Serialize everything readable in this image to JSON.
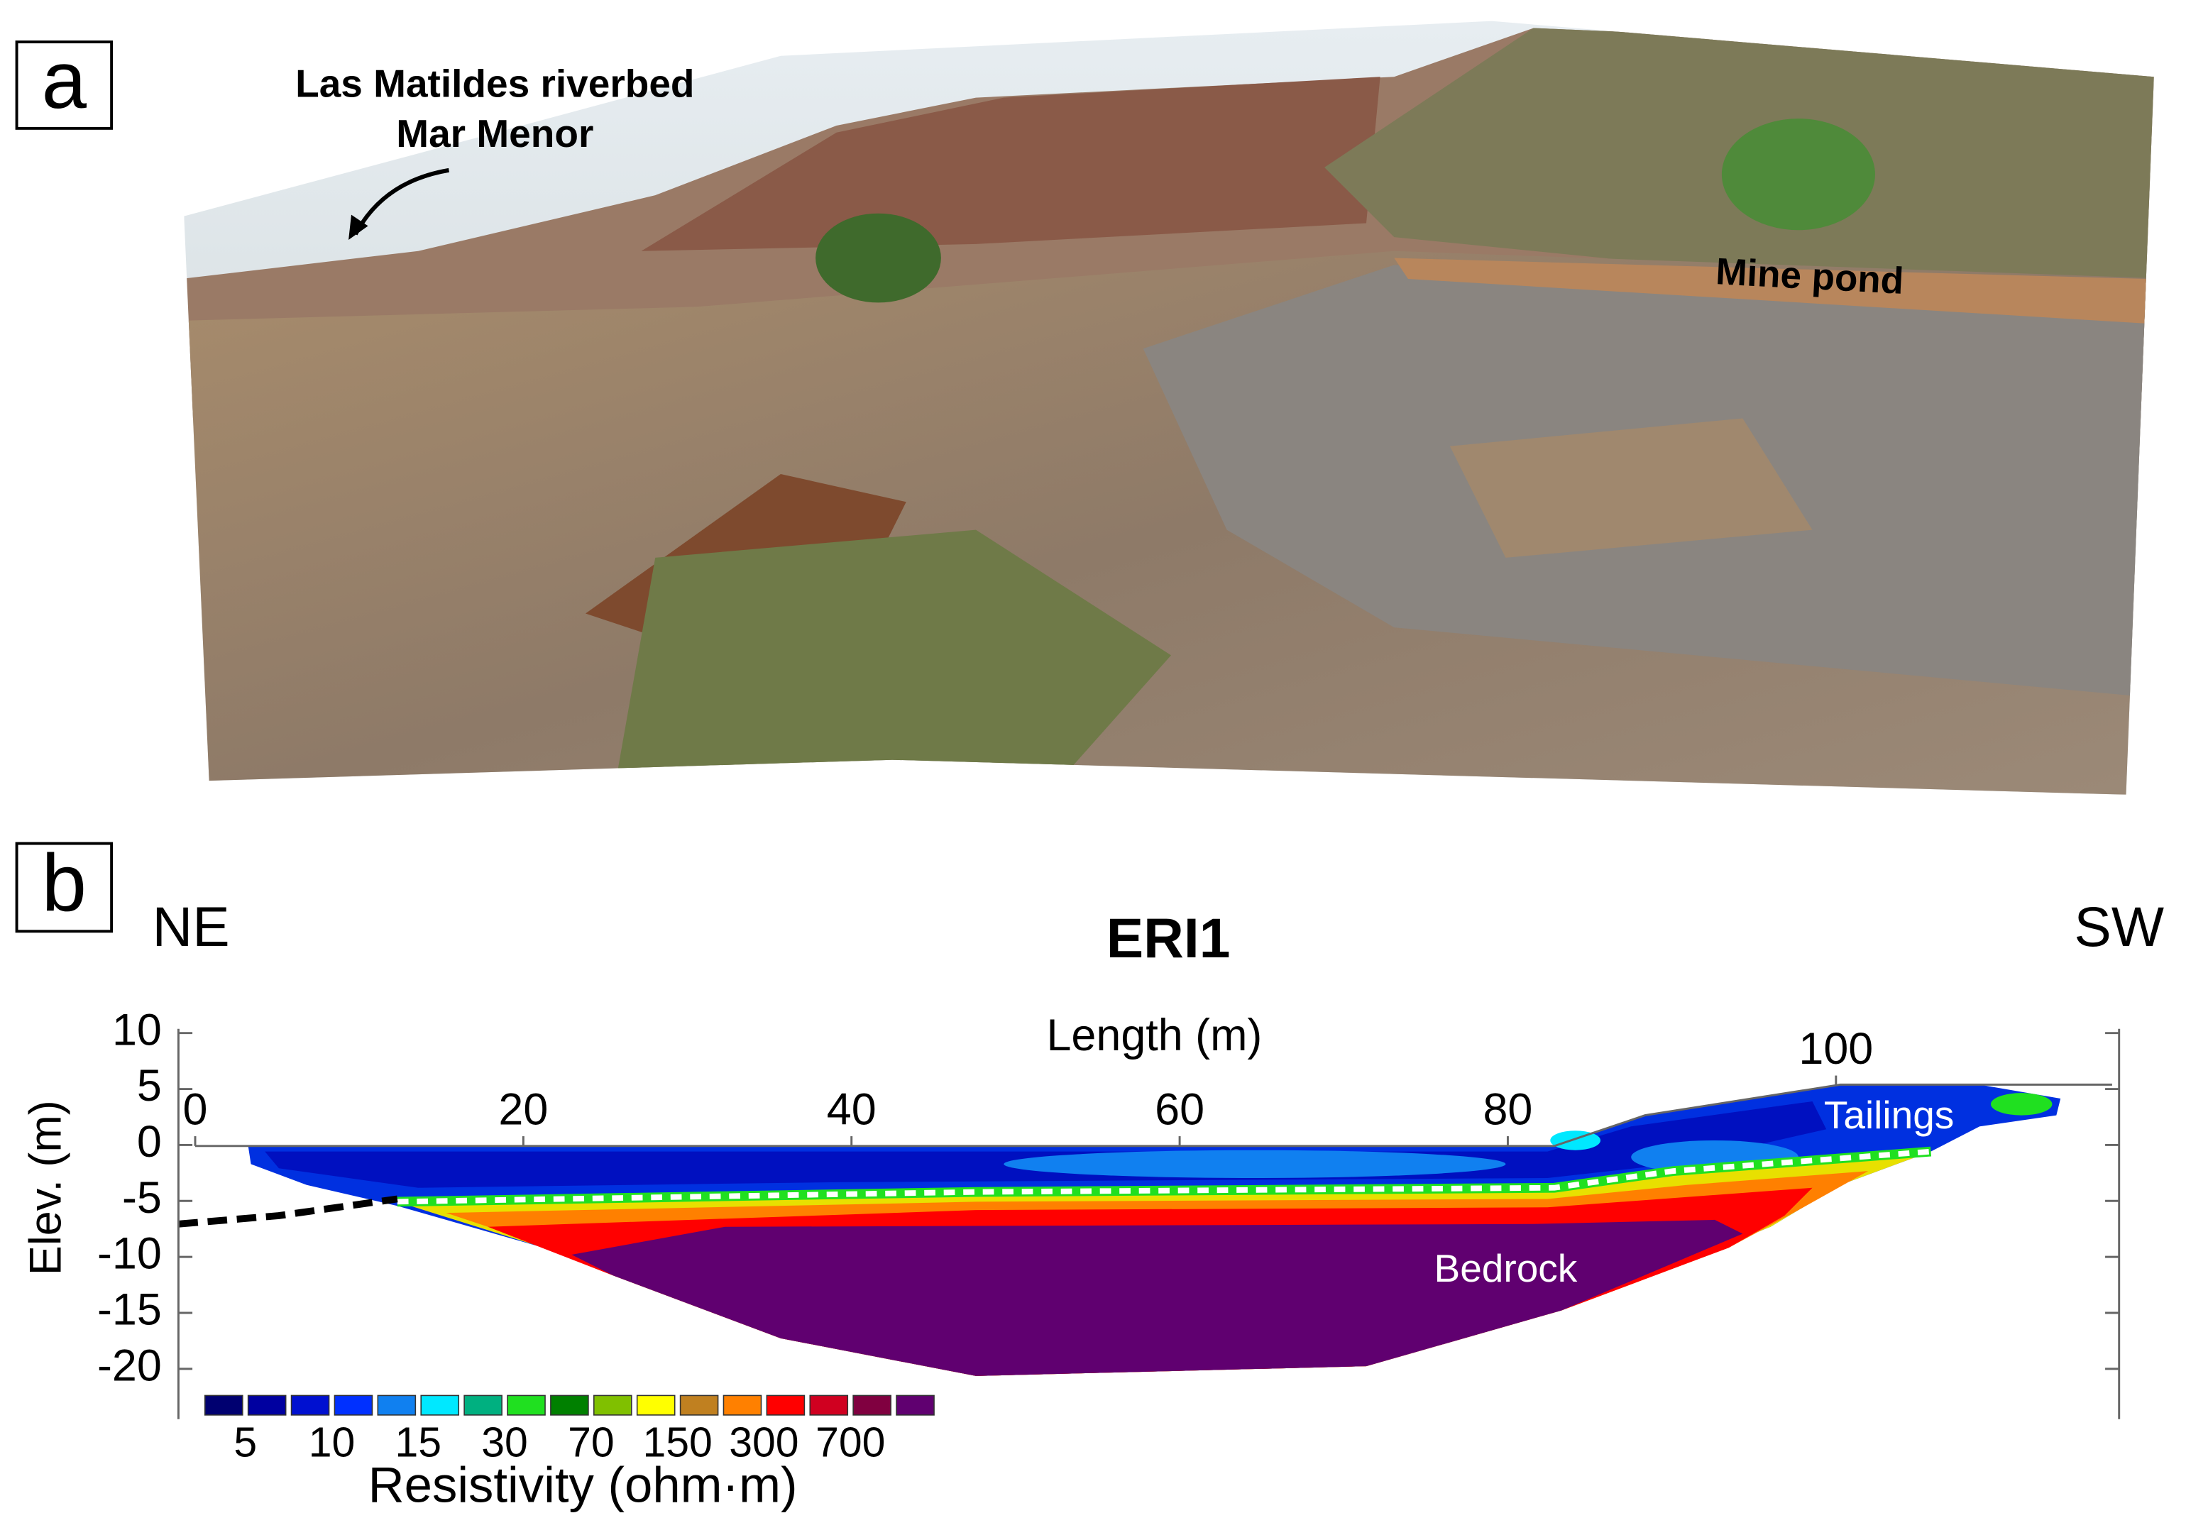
{
  "panel_a": {
    "label": "a",
    "annotations": [
      "Las Matildes riverbed",
      "Mar Menor",
      "Mine pond"
    ]
  },
  "panel_b": {
    "label": "b"
  },
  "chart_data": {
    "type": "resistivity-section",
    "title": "ERI1",
    "left_direction": "NE",
    "right_direction": "SW",
    "x_label": "Length (m)",
    "y_label": "Elev. (m)",
    "xlim": [
      0,
      117
    ],
    "ylim": [
      -24,
      10
    ],
    "xticks": [
      0,
      20,
      40,
      60,
      80,
      100
    ],
    "yticks": [
      10,
      5,
      0,
      -5,
      -10,
      -15,
      -20
    ],
    "zones": [
      "Tailings",
      "Bedrock"
    ],
    "colorbar": {
      "label": "Resistivity (ohm·m)",
      "ticks": [
        5,
        10,
        15,
        30,
        70,
        150,
        300,
        700
      ],
      "colors": [
        "#000070",
        "#0000a0",
        "#0010d0",
        "#0030ff",
        "#1080f0",
        "#00e8ff",
        "#00b080",
        "#20e020",
        "#008000",
        "#80c000",
        "#ffff00",
        "#c08020",
        "#ff8000",
        "#ff0000",
        "#d00020",
        "#800040",
        "#600070"
      ]
    }
  }
}
